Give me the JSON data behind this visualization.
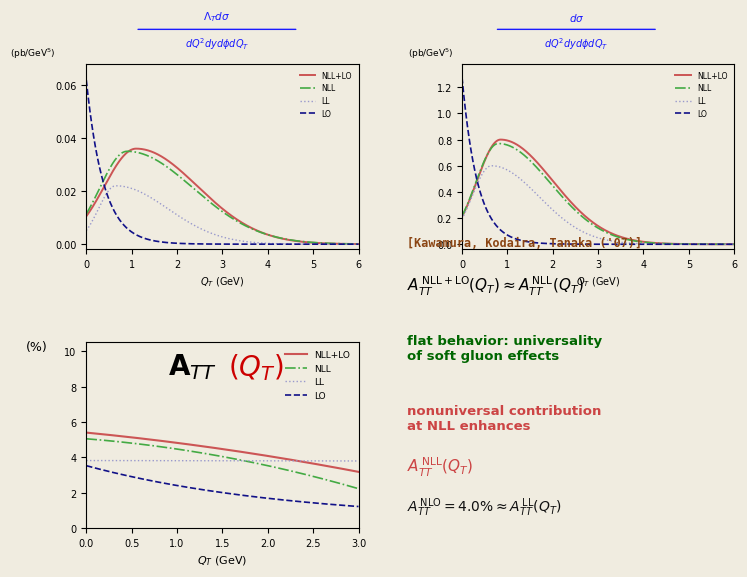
{
  "bg_color": "#f0ece0",
  "title_color": "#1a1aff",
  "plot1_ylabel": "(pb/GeV$^5$)",
  "plot2_ylabel": "(pb/GeV$^5$)",
  "plot3_ylabel": "(%)",
  "xlabel": "$Q_T$ (GeV)",
  "legend_labels": [
    "NLL+LO",
    "NLL",
    "LL",
    "LO"
  ],
  "colors": {
    "NLL+LO": "#cc5555",
    "NLL": "#44aa44",
    "LL": "#9999cc",
    "LO": "#111188"
  },
  "kawamura_text": "[Kawamura, Kodaira, Tanaka ('07)]",
  "kawamura_color": "#8B4513",
  "flat_color": "#006600",
  "nonuniv_color": "#cc4444",
  "black": "#111111"
}
